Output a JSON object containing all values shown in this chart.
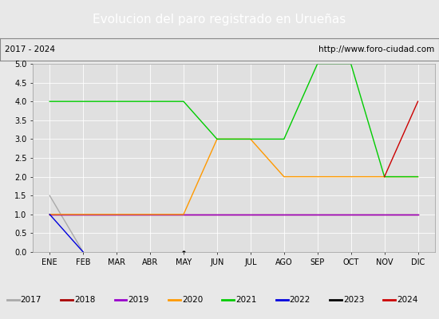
{
  "title": "Evolucion del paro registrado en Urueñas",
  "subtitle_left": "2017 - 2024",
  "subtitle_right": "http://www.foro-ciudad.com",
  "x_labels": [
    "ENE",
    "FEB",
    "MAR",
    "ABR",
    "MAY",
    "JUN",
    "JUL",
    "AGO",
    "SEP",
    "OCT",
    "NOV",
    "DIC"
  ],
  "ylim": [
    0.0,
    5.0
  ],
  "yticks": [
    0.0,
    0.5,
    1.0,
    1.5,
    2.0,
    2.5,
    3.0,
    3.5,
    4.0,
    4.5,
    5.0
  ],
  "series": {
    "2017": {
      "color": "#aaaaaa",
      "values": [
        1.5,
        0.0,
        null,
        null,
        null,
        null,
        null,
        null,
        null,
        null,
        null,
        null
      ]
    },
    "2018": {
      "color": "#aa0000",
      "values": [
        1.0,
        1.0,
        1.0,
        1.0,
        1.0,
        1.0,
        1.0,
        1.0,
        1.0,
        1.0,
        1.0,
        1.0
      ]
    },
    "2019": {
      "color": "#9900cc",
      "values": [
        1.0,
        1.0,
        1.0,
        1.0,
        1.0,
        1.0,
        1.0,
        1.0,
        1.0,
        1.0,
        1.0,
        1.0
      ]
    },
    "2020": {
      "color": "#ff9900",
      "values": [
        1.0,
        1.0,
        1.0,
        1.0,
        1.0,
        3.0,
        3.0,
        2.0,
        2.0,
        2.0,
        2.0,
        2.0
      ]
    },
    "2021": {
      "color": "#00cc00",
      "values": [
        4.0,
        4.0,
        4.0,
        4.0,
        4.0,
        3.0,
        3.0,
        3.0,
        5.0,
        5.0,
        2.0,
        2.0
      ]
    },
    "2022": {
      "color": "#0000dd",
      "values": [
        1.0,
        0.0,
        null,
        null,
        null,
        null,
        null,
        null,
        null,
        null,
        null,
        null
      ]
    },
    "2023": {
      "color": "#000000",
      "values": [
        null,
        null,
        null,
        null,
        0.0,
        null,
        null,
        null,
        null,
        null,
        null,
        null
      ]
    },
    "2024": {
      "color": "#cc0000",
      "values": [
        null,
        null,
        null,
        null,
        null,
        null,
        null,
        null,
        null,
        null,
        2.0,
        4.0
      ]
    }
  },
  "title_bg_color": "#5b8fc9",
  "title_color": "#ffffff",
  "title_fontsize": 11,
  "subtitle_fontsize": 7.5,
  "tick_fontsize": 7,
  "background_color": "#e8e8e8",
  "plot_bg_color": "#e0e0e0",
  "legend_years": [
    "2017",
    "2018",
    "2019",
    "2020",
    "2021",
    "2022",
    "2023",
    "2024"
  ],
  "legend_colors": [
    "#aaaaaa",
    "#aa0000",
    "#9900cc",
    "#ff9900",
    "#00cc00",
    "#0000dd",
    "#000000",
    "#cc0000"
  ]
}
